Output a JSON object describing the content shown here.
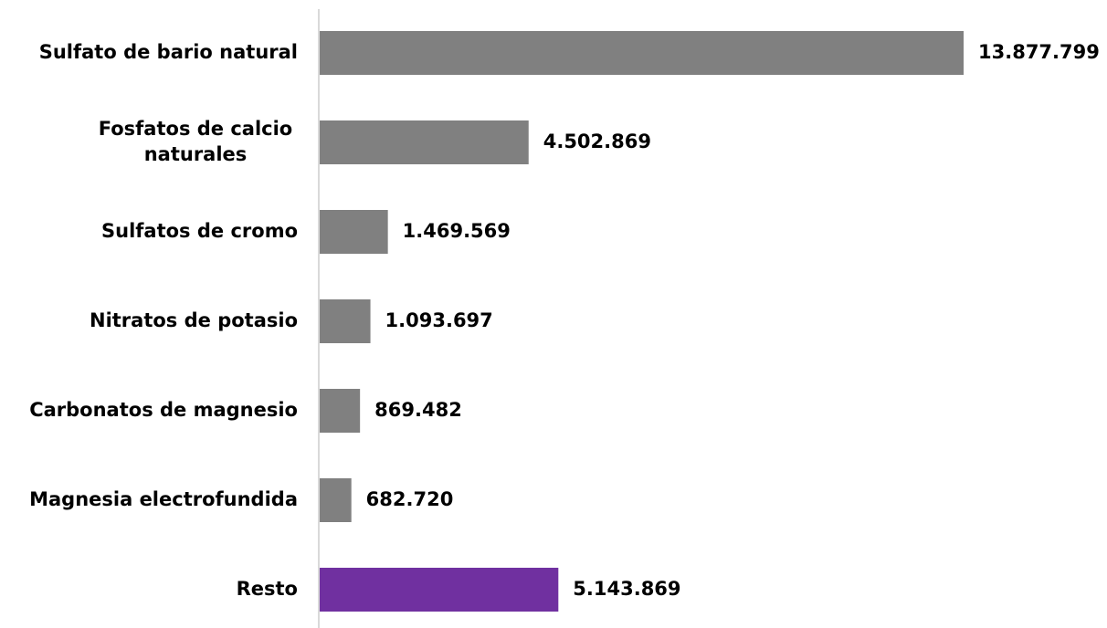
{
  "chart_data": {
    "type": "bar",
    "orientation": "horizontal",
    "categories": [
      [
        "Sulfato de bario natural"
      ],
      [
        "Fosfatos de calcio",
        "naturales"
      ],
      [
        "Sulfatos de cromo"
      ],
      [
        "Nitratos de potasio"
      ],
      [
        "Carbonatos de magnesio"
      ],
      [
        "Magnesia electrofundida"
      ],
      [
        "Resto"
      ]
    ],
    "values": [
      13877799,
      4502869,
      1469569,
      1093697,
      869482,
      682720,
      5143869
    ],
    "value_labels": [
      "13.877.799",
      "4.502.869",
      "1.469.569",
      "1.093.697",
      "869.482",
      "682.720",
      "5.143.869"
    ],
    "bar_colors": [
      "#808080",
      "#808080",
      "#808080",
      "#808080",
      "#808080",
      "#808080",
      "#7030a0"
    ],
    "axis_color": "#d9d9d9",
    "xlim": [
      0,
      13877799
    ],
    "grid": false,
    "legend": "none"
  }
}
